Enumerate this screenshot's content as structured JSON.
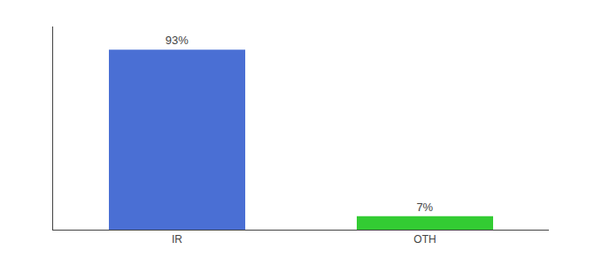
{
  "chart_data": {
    "type": "bar",
    "categories": [
      "IR",
      "OTH"
    ],
    "values": [
      93,
      7
    ],
    "value_labels": [
      "93%",
      "7%"
    ],
    "colors": [
      "#4a6fd4",
      "#33cc33"
    ],
    "ylim": [
      0,
      105
    ],
    "yticks": [],
    "data_labels": true,
    "tick_labels": "x",
    "grid": false
  }
}
